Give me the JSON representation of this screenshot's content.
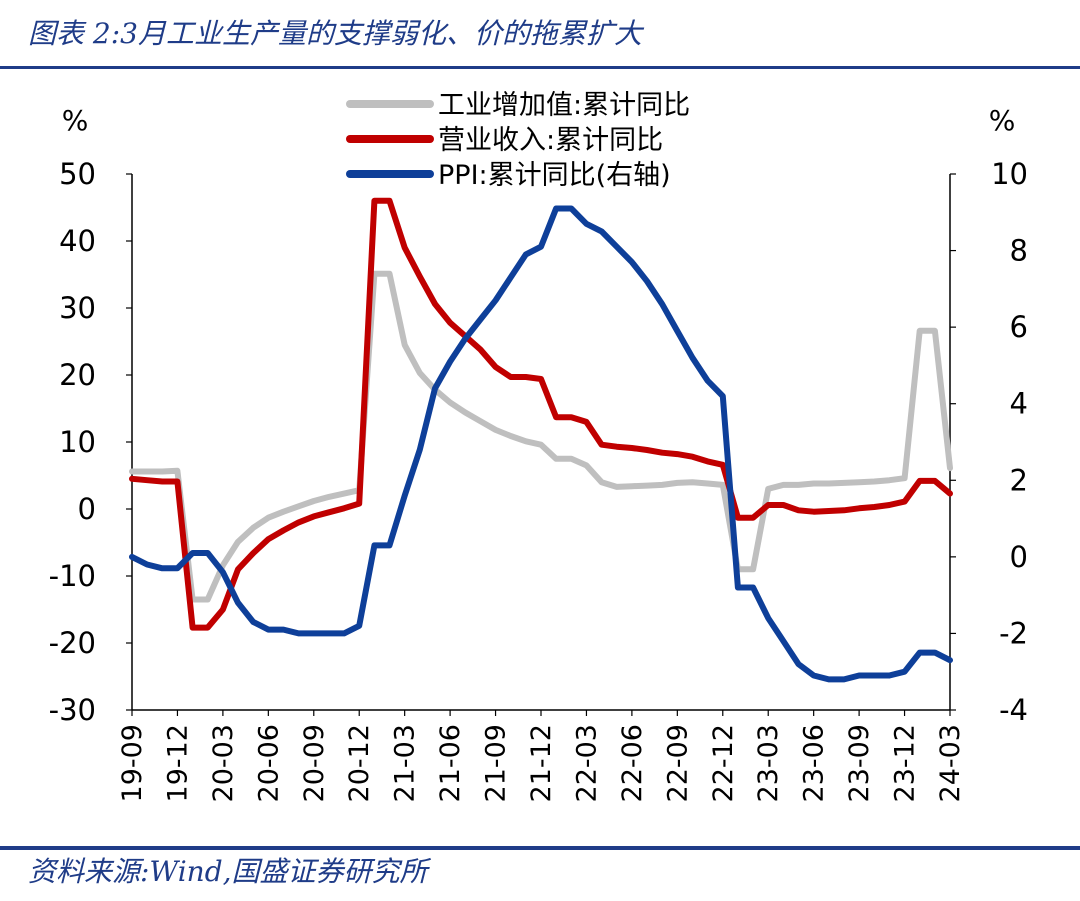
{
  "header": {
    "title": "图表 2:3月工业生产量的支撑弱化、价的拖累扩大"
  },
  "footer": {
    "source": "资料来源:Wind,国盛证券研究所"
  },
  "chart_data": {
    "type": "line",
    "left_unit": "%",
    "right_unit": "%",
    "left_axis": {
      "ylim": [
        -30,
        50
      ],
      "ticks": [
        50,
        40,
        30,
        20,
        10,
        0,
        -10,
        -20,
        -30
      ]
    },
    "right_axis": {
      "ylim": [
        -4,
        10
      ],
      "ticks": [
        10,
        8,
        6,
        4,
        2,
        0,
        -2,
        -4
      ]
    },
    "x_tick_labels": [
      "19-09",
      "19-12",
      "20-03",
      "20-06",
      "20-09",
      "20-12",
      "21-03",
      "21-06",
      "21-09",
      "21-12",
      "22-03",
      "22-06",
      "22-09",
      "22-12",
      "23-03",
      "23-06",
      "23-09",
      "23-12",
      "24-03"
    ],
    "grid": false,
    "legend_position": "top-center",
    "x": [
      "2019-09",
      "2019-10",
      "2019-11",
      "2019-12",
      "2020-01",
      "2020-02",
      "2020-03",
      "2020-04",
      "2020-05",
      "2020-06",
      "2020-07",
      "2020-08",
      "2020-09",
      "2020-10",
      "2020-11",
      "2020-12",
      "2021-01",
      "2021-02",
      "2021-03",
      "2021-04",
      "2021-05",
      "2021-06",
      "2021-07",
      "2021-08",
      "2021-09",
      "2021-10",
      "2021-11",
      "2021-12",
      "2022-01",
      "2022-02",
      "2022-03",
      "2022-04",
      "2022-05",
      "2022-06",
      "2022-07",
      "2022-08",
      "2022-09",
      "2022-10",
      "2022-11",
      "2022-12",
      "2023-01",
      "2023-02",
      "2023-03",
      "2023-04",
      "2023-05",
      "2023-06",
      "2023-07",
      "2023-08",
      "2023-09",
      "2023-10",
      "2023-11",
      "2023-12",
      "2024-01",
      "2024-02",
      "2024-03"
    ],
    "series": [
      {
        "name": "工业增加值:累计同比",
        "axis": "left",
        "color": "#bfbfbf",
        "values": [
          5.6,
          5.6,
          5.6,
          5.7,
          -13.5,
          -13.5,
          -8.4,
          -4.9,
          -2.8,
          -1.3,
          -0.4,
          0.4,
          1.2,
          1.8,
          2.3,
          2.8,
          35.1,
          35.1,
          24.5,
          20.3,
          17.8,
          15.9,
          14.4,
          13.1,
          11.8,
          10.9,
          10.1,
          9.6,
          7.5,
          7.5,
          6.5,
          4.0,
          3.3,
          3.4,
          3.5,
          3.6,
          3.9,
          4.0,
          3.8,
          3.6,
          -9.0,
          -9.0,
          3.0,
          3.6,
          3.6,
          3.8,
          3.8,
          3.9,
          4.0,
          4.1,
          4.3,
          4.6,
          26.6,
          26.6,
          6.1
        ]
      },
      {
        "name": "营业收入:累计同比",
        "axis": "left",
        "color": "#c00000",
        "values": [
          4.5,
          4.3,
          4.1,
          4.1,
          -17.7,
          -17.7,
          -15.0,
          -9.0,
          -6.6,
          -4.5,
          -3.2,
          -2.0,
          -1.1,
          -0.5,
          0.1,
          0.8,
          46.0,
          46.0,
          39.0,
          34.7,
          30.6,
          27.8,
          25.8,
          23.8,
          21.2,
          19.7,
          19.7,
          19.4,
          13.7,
          13.7,
          13.0,
          9.6,
          9.3,
          9.1,
          8.8,
          8.4,
          8.2,
          7.8,
          7.1,
          6.6,
          -1.3,
          -1.3,
          0.6,
          0.6,
          -0.2,
          -0.4,
          -0.3,
          -0.2,
          0.1,
          0.3,
          0.6,
          1.1,
          4.2,
          4.2,
          2.3
        ]
      },
      {
        "name": "PPI:累计同比(右轴)",
        "axis": "right",
        "color": "#0e3f99",
        "values": [
          0.0,
          -0.2,
          -0.3,
          -0.3,
          0.1,
          0.1,
          -0.4,
          -1.2,
          -1.7,
          -1.9,
          -1.9,
          -2.0,
          -2.0,
          -2.0,
          -2.0,
          -1.8,
          0.3,
          0.3,
          1.6,
          2.8,
          4.4,
          5.1,
          5.7,
          6.2,
          6.7,
          7.3,
          7.9,
          8.1,
          9.1,
          9.1,
          8.7,
          8.5,
          8.1,
          7.7,
          7.2,
          6.6,
          5.9,
          5.2,
          4.6,
          4.2,
          -0.8,
          -0.8,
          -1.6,
          -2.2,
          -2.8,
          -3.1,
          -3.2,
          -3.2,
          -3.1,
          -3.1,
          -3.1,
          -3.0,
          -2.5,
          -2.5,
          -2.7
        ]
      }
    ]
  }
}
